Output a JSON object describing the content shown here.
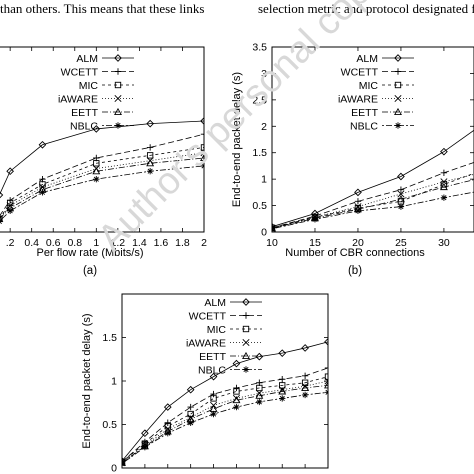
{
  "top_text": {
    "left": "than others. This means that these links",
    "right": "selection metric and protocol designated for I"
  },
  "watermark": "Author's personal copy",
  "series_styles": [
    {
      "name": "ALM",
      "marker": "diamond",
      "dash": ""
    },
    {
      "name": "WCETT",
      "marker": "plus",
      "dash": "6,3"
    },
    {
      "name": "MIC",
      "marker": "square",
      "dash": "3,3"
    },
    {
      "name": "iAWARE",
      "marker": "cross",
      "dash": "1,2"
    },
    {
      "name": "EETT",
      "marker": "triangle",
      "dash": "6,2,1,2"
    },
    {
      "name": "NBLC",
      "marker": "star",
      "dash": "2,2,6,2"
    }
  ],
  "chart_data": [
    {
      "type": "line",
      "panel_label": "(a)",
      "xlabel": "Per flow rate (Mbits/s)",
      "ylabel": "",
      "xlim": [
        0.05,
        2.0
      ],
      "ylim": [
        0,
        3.5
      ],
      "x_ticks": [
        0.2,
        0.4,
        0.6,
        0.8,
        1,
        1.2,
        1.4,
        1.6,
        1.8,
        2
      ],
      "x_tick_labels": [
        ".2",
        "0.4",
        "0.6",
        "0.8",
        "1",
        "1.2",
        "1.4",
        "1.6",
        "1.8",
        "2"
      ],
      "y_ticks": [],
      "y_tick_labels": [],
      "legend_position": "top-right",
      "grid": false,
      "x": [
        0.1,
        0.2,
        0.5,
        1.0,
        1.5,
        2.0
      ],
      "series": [
        {
          "name": "ALM",
          "values": [
            0.7,
            1.15,
            1.65,
            1.95,
            2.05,
            2.1
          ]
        },
        {
          "name": "WCETT",
          "values": [
            0.3,
            0.6,
            1.0,
            1.4,
            1.6,
            1.85
          ]
        },
        {
          "name": "MIC",
          "values": [
            0.25,
            0.55,
            0.9,
            1.3,
            1.45,
            1.6
          ]
        },
        {
          "name": "iAWARE",
          "values": [
            0.25,
            0.5,
            0.85,
            1.2,
            1.35,
            1.5
          ]
        },
        {
          "name": "EETT",
          "values": [
            0.25,
            0.45,
            0.8,
            1.15,
            1.3,
            1.4
          ]
        },
        {
          "name": "NBLC",
          "values": [
            0.2,
            0.4,
            0.75,
            1.0,
            1.15,
            1.25
          ]
        }
      ]
    },
    {
      "type": "line",
      "panel_label": "(b)",
      "xlabel": "Number of CBR connections",
      "ylabel": "End-to-end packet delay (s)",
      "xlim": [
        10,
        33.5
      ],
      "ylim": [
        0,
        3.5
      ],
      "x_ticks": [
        10,
        15,
        20,
        25,
        30
      ],
      "x_tick_labels": [
        "10",
        "15",
        "20",
        "25",
        "30"
      ],
      "y_ticks": [
        0,
        0.5,
        1,
        1.5,
        2,
        2.5,
        3,
        3.5
      ],
      "y_tick_labels": [
        "0",
        "0.5",
        "1",
        "1.5",
        "2",
        "2.5",
        "3",
        "3.5"
      ],
      "legend_position": "top-right",
      "grid": false,
      "x": [
        10,
        15,
        20,
        25,
        30,
        35
      ],
      "series": [
        {
          "name": "ALM",
          "values": [
            0.1,
            0.35,
            0.75,
            1.05,
            1.52,
            2.1
          ]
        },
        {
          "name": "WCETT",
          "values": [
            0.08,
            0.3,
            0.58,
            0.8,
            1.12,
            1.4
          ]
        },
        {
          "name": "MIC",
          "values": [
            0.08,
            0.28,
            0.45,
            0.58,
            0.9,
            1.2
          ]
        },
        {
          "name": "iAWARE",
          "values": [
            0.07,
            0.28,
            0.48,
            0.72,
            0.95,
            1.15
          ]
        },
        {
          "name": "EETT",
          "values": [
            0.07,
            0.26,
            0.43,
            0.62,
            0.85,
            1.05
          ]
        },
        {
          "name": "NBLC",
          "values": [
            0.06,
            0.24,
            0.4,
            0.48,
            0.65,
            0.8
          ]
        }
      ]
    },
    {
      "type": "line",
      "panel_label": "",
      "xlabel": "",
      "ylabel": "End-to-end packet delay (s)",
      "xlim": [
        0,
        9
      ],
      "ylim": [
        0,
        2
      ],
      "x_ticks": [],
      "x_tick_labels": [],
      "y_ticks": [
        0,
        0.5,
        1,
        1.5
      ],
      "y_tick_labels": [
        "0",
        "0.5",
        "1",
        "1.5"
      ],
      "legend_position": "top-left",
      "grid": false,
      "x": [
        0,
        1,
        2,
        3,
        4,
        5,
        6,
        7,
        8,
        9
      ],
      "series": [
        {
          "name": "ALM",
          "values": [
            0.08,
            0.4,
            0.7,
            0.9,
            1.05,
            1.2,
            1.28,
            1.32,
            1.38,
            1.45
          ]
        },
        {
          "name": "WCETT",
          "values": [
            0.07,
            0.3,
            0.52,
            0.7,
            0.85,
            0.92,
            0.98,
            1.02,
            1.06,
            1.15
          ]
        },
        {
          "name": "MIC",
          "values": [
            0.07,
            0.28,
            0.48,
            0.62,
            0.8,
            0.88,
            0.92,
            0.95,
            0.98,
            1.05
          ]
        },
        {
          "name": "iAWARE",
          "values": [
            0.06,
            0.26,
            0.45,
            0.58,
            0.72,
            0.8,
            0.86,
            0.9,
            0.94,
            1.0
          ]
        },
        {
          "name": "EETT",
          "values": [
            0.06,
            0.25,
            0.42,
            0.56,
            0.68,
            0.78,
            0.83,
            0.88,
            0.92,
            0.95
          ]
        },
        {
          "name": "NBLC",
          "values": [
            0.05,
            0.24,
            0.4,
            0.52,
            0.62,
            0.7,
            0.76,
            0.8,
            0.84,
            0.87
          ]
        }
      ]
    }
  ]
}
